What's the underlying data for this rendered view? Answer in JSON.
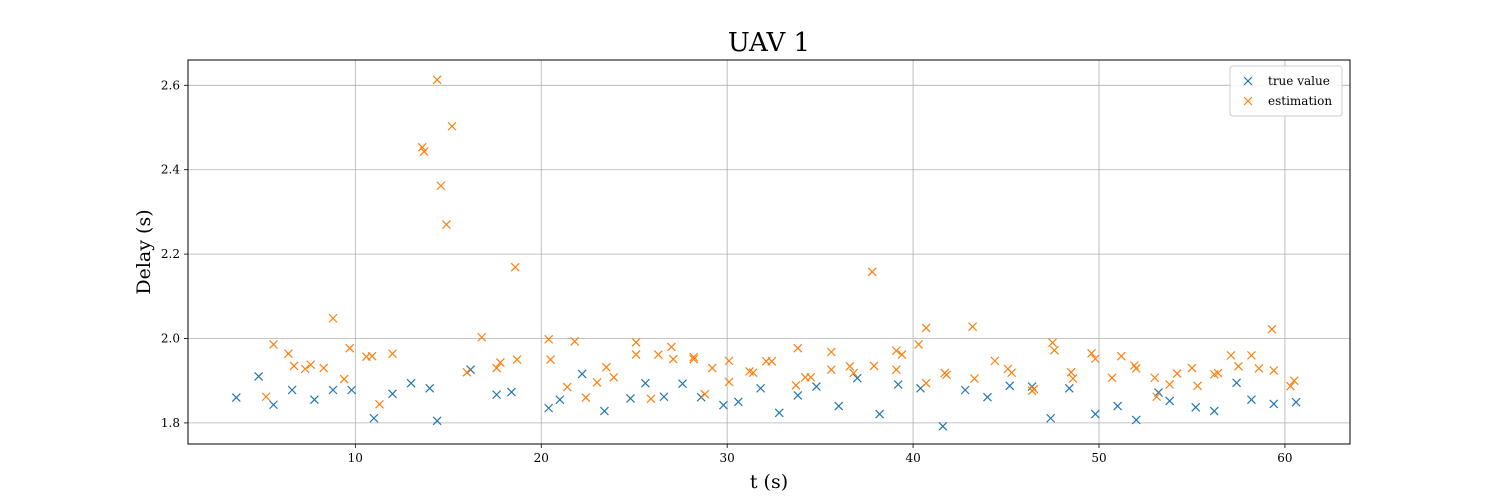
{
  "chart_data": {
    "type": "scatter",
    "title": "UAV 1",
    "xlabel": "t (s)",
    "ylabel": "Delay (s)",
    "xlim": [
      1,
      63.5
    ],
    "ylim": [
      1.75,
      2.66
    ],
    "xticks": [
      10,
      20,
      30,
      40,
      50,
      60
    ],
    "yticks": [
      1.8,
      2.0,
      2.2,
      2.4,
      2.6
    ],
    "ytick_labels": [
      "1.8",
      "2.0",
      "2.2",
      "2.4",
      "2.6"
    ],
    "grid": true,
    "legend_position": "top-right",
    "series": [
      {
        "name": "true value",
        "color": "#1f77b4",
        "marker": "x",
        "x": [
          3.6,
          4.8,
          5.6,
          6.6,
          7.8,
          8.8,
          9.8,
          11.0,
          12.0,
          13.0,
          14.0,
          14.4,
          16.2,
          17.6,
          18.4,
          20.4,
          21.0,
          22.2,
          23.4,
          24.8,
          25.6,
          26.6,
          27.6,
          28.6,
          29.8,
          30.6,
          31.8,
          32.8,
          33.8,
          34.8,
          36.0,
          37.0,
          38.2,
          39.2,
          40.4,
          41.6,
          42.8,
          44.0,
          45.2,
          46.4,
          47.4,
          48.4,
          49.8,
          51.0,
          52.0,
          53.2,
          53.8,
          55.2,
          56.2,
          57.4,
          58.2,
          59.4,
          60.6
        ],
        "y": [
          1.86,
          1.91,
          1.843,
          1.878,
          1.855,
          1.878,
          1.878,
          1.811,
          1.869,
          1.894,
          1.882,
          1.805,
          1.926,
          1.867,
          1.873,
          1.835,
          1.855,
          1.916,
          1.828,
          1.858,
          1.894,
          1.862,
          1.893,
          1.861,
          1.842,
          1.85,
          1.882,
          1.824,
          1.865,
          1.886,
          1.84,
          1.906,
          1.821,
          1.891,
          1.882,
          1.792,
          1.878,
          1.861,
          1.888,
          1.886,
          1.811,
          1.882,
          1.821,
          1.84,
          1.807,
          1.872,
          1.852,
          1.837,
          1.828,
          1.895,
          1.855,
          1.845,
          1.849
        ]
      },
      {
        "name": "estimation",
        "color": "#ff7f0e",
        "marker": "x",
        "x": [
          5.2,
          5.6,
          6.4,
          6.7,
          7.3,
          7.6,
          8.3,
          8.8,
          9.4,
          9.7,
          10.6,
          10.9,
          11.3,
          12.0,
          13.6,
          13.7,
          14.4,
          14.6,
          14.9,
          15.2,
          16.0,
          16.8,
          17.6,
          17.8,
          18.6,
          18.7,
          20.4,
          20.5,
          21.4,
          21.8,
          22.4,
          23.0,
          23.5,
          23.9,
          25.1,
          25.1,
          25.9,
          26.3,
          27.0,
          27.1,
          28.2,
          28.2,
          28.8,
          29.2,
          30.1,
          30.1,
          31.2,
          31.4,
          32.1,
          32.4,
          33.7,
          33.8,
          34.2,
          34.5,
          35.6,
          35.6,
          36.6,
          36.8,
          37.8,
          37.9,
          39.1,
          39.1,
          39.4,
          40.3,
          40.7,
          40.7,
          41.7,
          41.8,
          43.2,
          43.3,
          44.4,
          45.1,
          45.3,
          46.4,
          46.5,
          47.5,
          47.6,
          48.5,
          48.6,
          49.6,
          49.8,
          50.7,
          51.2,
          51.9,
          52.0,
          53.0,
          53.1,
          53.8,
          54.2,
          55.0,
          55.3,
          56.2,
          56.4,
          57.1,
          57.5,
          58.2,
          58.6,
          59.3,
          59.4,
          60.3,
          60.5
        ],
        "y": [
          1.862,
          1.986,
          1.964,
          1.935,
          1.928,
          1.938,
          1.93,
          2.048,
          1.904,
          1.977,
          1.957,
          1.958,
          1.844,
          1.964,
          2.453,
          2.443,
          2.613,
          2.362,
          2.27,
          2.503,
          1.92,
          2.003,
          1.93,
          1.943,
          2.169,
          1.95,
          1.998,
          1.95,
          1.885,
          1.993,
          1.86,
          1.896,
          1.932,
          1.908,
          1.991,
          1.962,
          1.857,
          1.962,
          1.98,
          1.951,
          1.956,
          1.951,
          1.868,
          1.93,
          1.947,
          1.897,
          1.922,
          1.919,
          1.946,
          1.946,
          1.889,
          1.977,
          1.908,
          1.908,
          1.968,
          1.926,
          1.934,
          1.918,
          2.158,
          1.935,
          1.971,
          1.926,
          1.962,
          1.986,
          2.025,
          1.894,
          1.918,
          1.914,
          2.028,
          1.905,
          1.947,
          1.928,
          1.919,
          1.876,
          1.88,
          1.99,
          1.972,
          1.92,
          1.905,
          1.965,
          1.952,
          1.907,
          1.958,
          1.936,
          1.929,
          1.907,
          1.862,
          1.891,
          1.917,
          1.93,
          1.888,
          1.915,
          1.918,
          1.96,
          1.934,
          1.96,
          1.929,
          2.022,
          1.924,
          1.887,
          1.9
        ]
      }
    ]
  }
}
